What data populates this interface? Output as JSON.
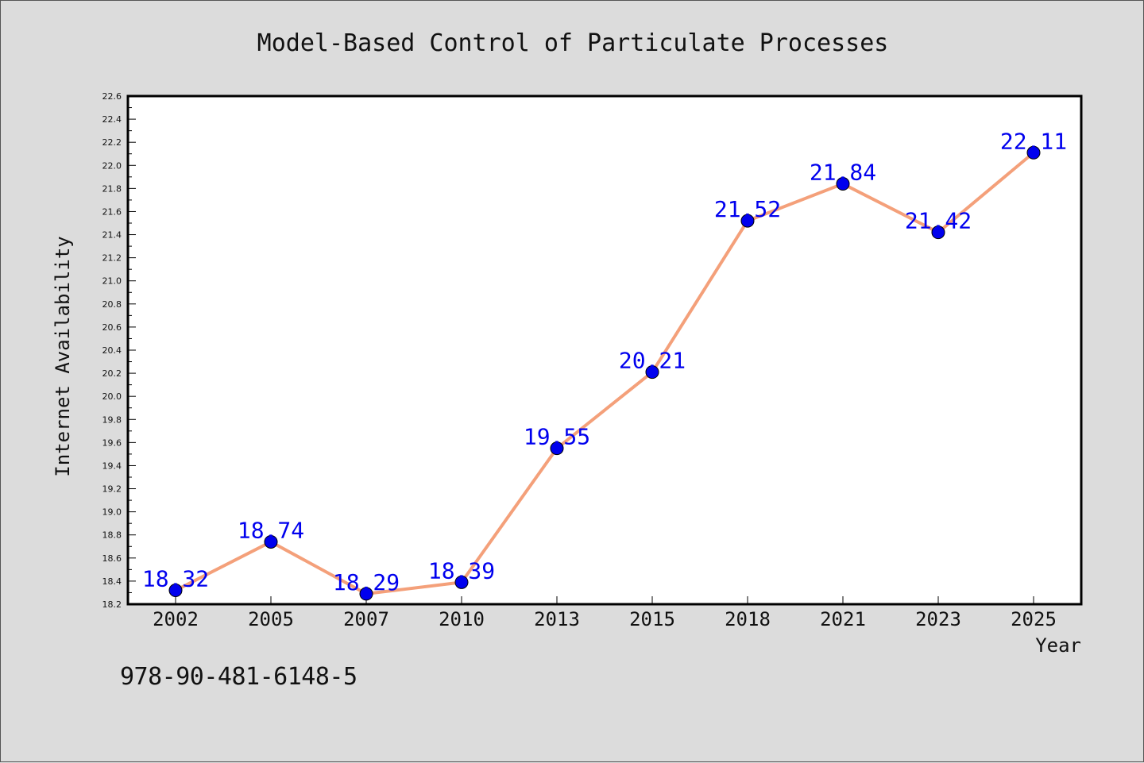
{
  "chart_data": {
    "type": "line",
    "title": "Model-Based Control of Particulate Processes",
    "xlabel": "Year",
    "ylabel": "Internet Availability",
    "categories": [
      "2002",
      "2005",
      "2007",
      "2010",
      "2013",
      "2015",
      "2018",
      "2021",
      "2023",
      "2025"
    ],
    "series": [
      {
        "values": [
          18.32,
          18.74,
          18.29,
          18.39,
          19.55,
          20.21,
          21.52,
          21.84,
          21.42,
          22.11
        ],
        "data_labels": [
          "18.32",
          "18.74",
          "18.29",
          "18.39",
          "19.55",
          "20.21",
          "21.52",
          "21.84",
          "21.42",
          "22.11"
        ]
      }
    ],
    "ylim": [
      18.2,
      22.6
    ],
    "yticks": [
      "18.2",
      "18.4",
      "18.6",
      "18.8",
      "19.0",
      "19.2",
      "19.4",
      "19.6",
      "19.8",
      "20.0",
      "20.2",
      "20.4",
      "20.6",
      "20.8",
      "21.0",
      "21.2",
      "21.4",
      "21.6",
      "21.8",
      "22.0",
      "22.2",
      "22.4",
      "22.6"
    ],
    "grid": false,
    "legend": "none",
    "colors": {
      "line": "#f4a07a",
      "marker": "#0000ee",
      "label": "#0000ee",
      "background": "#dcdcdc",
      "plot_background": "#ffffff"
    }
  },
  "footer": {
    "isbn": "978-90-481-6148-5"
  }
}
